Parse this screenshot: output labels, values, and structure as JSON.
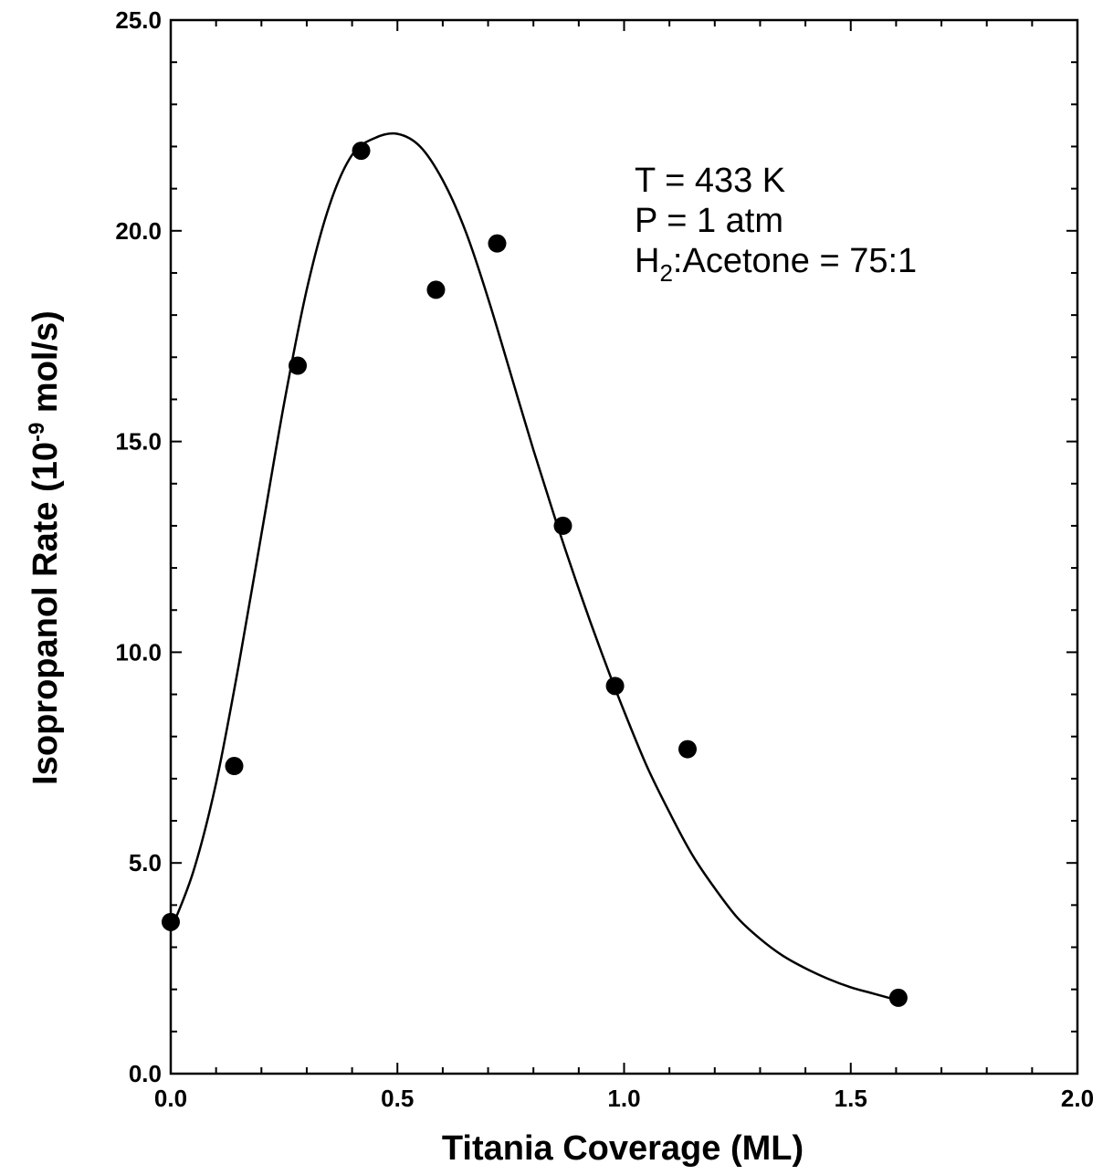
{
  "chart_data": {
    "type": "scatter",
    "xlabel": "Titania Coverage (ML)",
    "ylabel": {
      "main": "Isopropanol Rate (10",
      "superscript": "-9",
      "tail": " mol/s)"
    },
    "xlim": [
      0.0,
      2.0
    ],
    "ylim": [
      0.0,
      25.0
    ],
    "x_ticks": [
      "0.0",
      "0.5",
      "1.0",
      "1.5",
      "2.0"
    ],
    "y_ticks": [
      "0.0",
      "5.0",
      "10.0",
      "15.0",
      "20.0",
      "25.0"
    ],
    "grid": false,
    "annotations": [
      {
        "text": "T = 433 K"
      },
      {
        "text": "P = 1 atm"
      },
      {
        "prefix": "H",
        "subscript": "2",
        "suffix": ":Acetone = 75:1"
      }
    ],
    "series": [
      {
        "kind": "points",
        "x": [
          0.0,
          0.14,
          0.28,
          0.42,
          0.585,
          0.72,
          0.865,
          0.98,
          1.14,
          1.605
        ],
        "y": [
          3.6,
          7.3,
          16.8,
          21.9,
          18.6,
          19.7,
          13.0,
          9.2,
          7.7,
          1.8
        ]
      },
      {
        "kind": "fit-curve",
        "x": [
          0.0,
          0.05,
          0.1,
          0.15,
          0.2,
          0.25,
          0.3,
          0.35,
          0.4,
          0.45,
          0.5,
          0.55,
          0.6,
          0.65,
          0.7,
          0.75,
          0.8,
          0.85,
          0.9,
          0.95,
          1.0,
          1.05,
          1.1,
          1.15,
          1.2,
          1.25,
          1.3,
          1.35,
          1.4,
          1.45,
          1.5,
          1.55,
          1.6
        ],
        "y": [
          3.4,
          4.8,
          6.9,
          9.7,
          12.8,
          15.9,
          18.6,
          20.6,
          21.8,
          22.2,
          22.3,
          22.0,
          21.2,
          20.0,
          18.4,
          16.6,
          14.8,
          13.1,
          11.5,
          10.0,
          8.6,
          7.3,
          6.2,
          5.2,
          4.4,
          3.7,
          3.2,
          2.8,
          2.5,
          2.25,
          2.05,
          1.9,
          1.75
        ]
      }
    ]
  }
}
